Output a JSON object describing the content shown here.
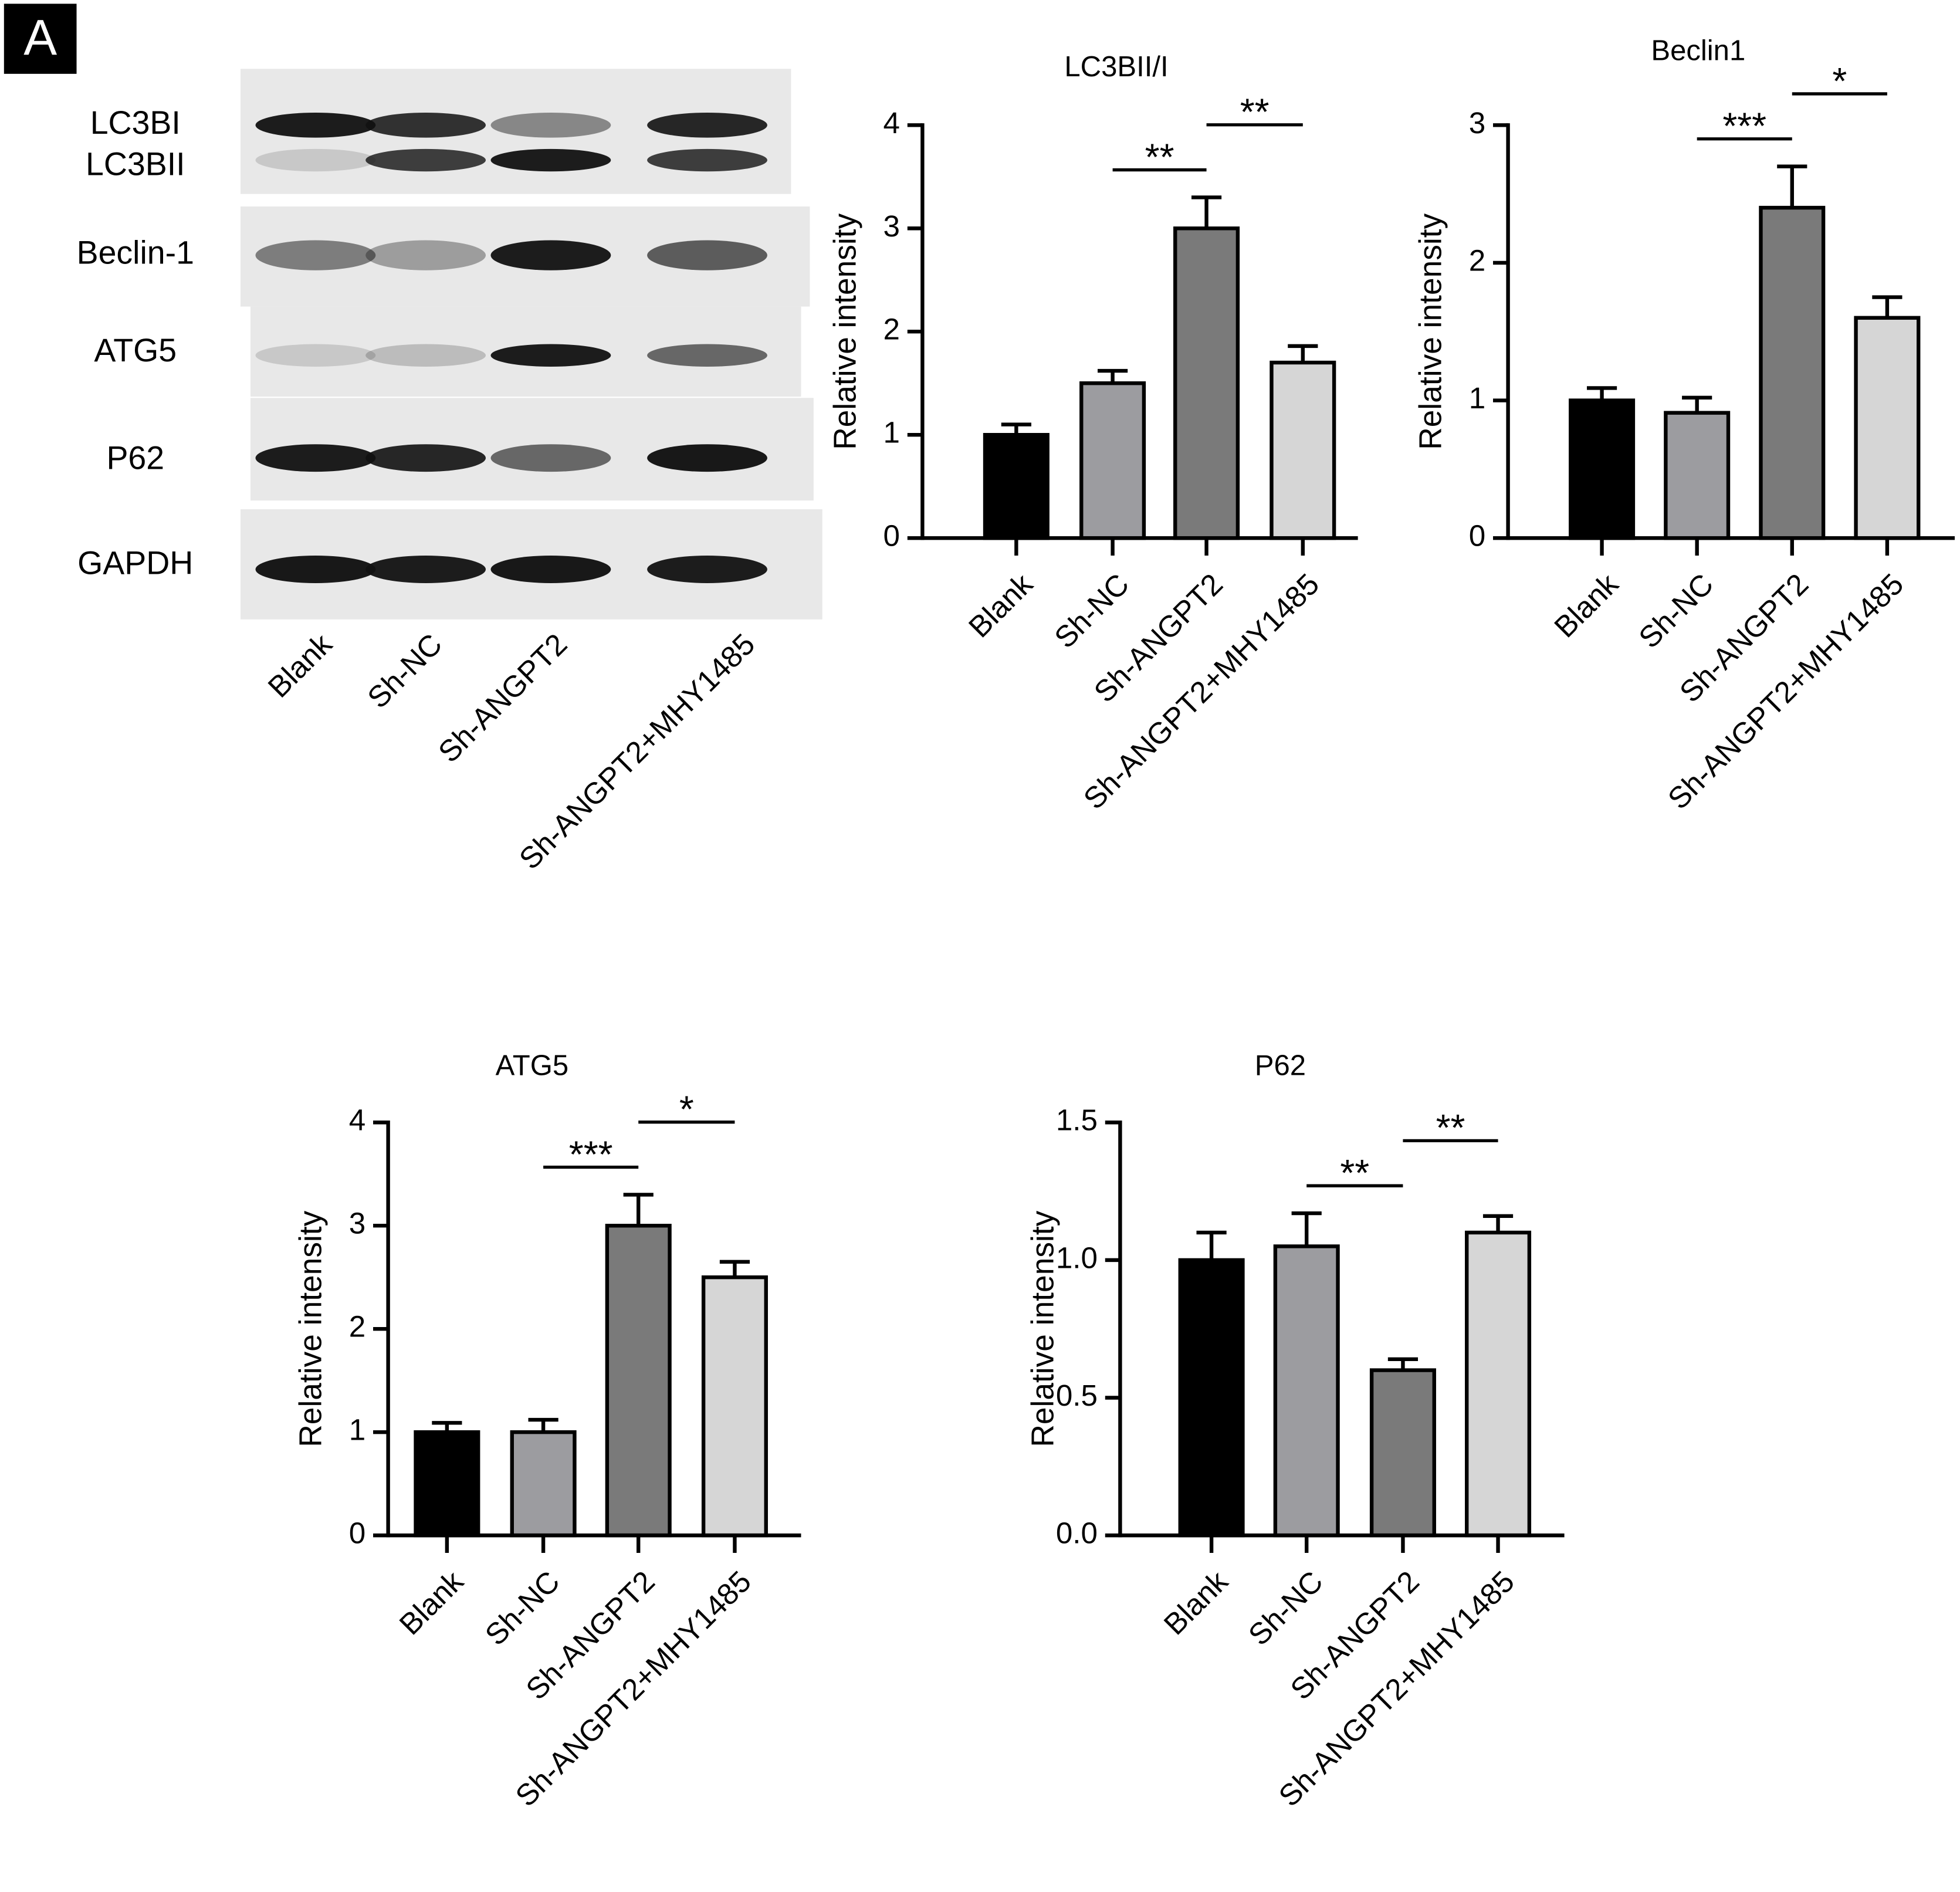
{
  "panel_label": "A",
  "blot": {
    "rows": [
      "LC3BI",
      "LC3BII",
      "Beclin-1",
      "ATG5",
      "P62",
      "GAPDH"
    ],
    "lanes": [
      "Blank",
      "Sh-NC",
      "Sh-ANGPT2",
      "Sh-ANGPT2+MHY1485"
    ]
  },
  "chart_data": [
    {
      "type": "bar",
      "title": "LC3BII/I",
      "ylabel": "Relative intensity",
      "categories": [
        "Blank",
        "Sh-NC",
        "Sh-ANGPT2",
        "Sh-ANGPT2+MHY1485"
      ],
      "values": [
        1,
        1.5,
        3,
        1.7
      ],
      "errors": [
        0.1,
        0.12,
        0.3,
        0.16
      ],
      "colors": [
        "#000000",
        "#9c9ca0",
        "#7a7a7a",
        "#d6d6d6"
      ],
      "ylim": [
        0,
        4
      ],
      "yticks": [
        0,
        1,
        2,
        3,
        4
      ],
      "annotations": [
        {
          "text": "**",
          "groups": [
            "Sh-NC",
            "Sh-ANGPT2"
          ]
        },
        {
          "text": "**",
          "groups": [
            "Sh-ANGPT2",
            "Sh-ANGPT2+MHY1485"
          ]
        }
      ]
    },
    {
      "type": "bar",
      "title": "Beclin1",
      "ylabel": "Relative intensity",
      "categories": [
        "Blank",
        "Sh-NC",
        "Sh-ANGPT2",
        "Sh-ANGPT2+MHY1485"
      ],
      "values": [
        1,
        0.91,
        2.4,
        1.6
      ],
      "errors": [
        0.09,
        0.11,
        0.3,
        0.15
      ],
      "colors": [
        "#000000",
        "#9c9ca0",
        "#7a7a7a",
        "#d6d6d6"
      ],
      "ylim": [
        0,
        3
      ],
      "yticks": [
        0,
        1,
        2,
        3
      ],
      "annotations": [
        {
          "text": "***",
          "groups": [
            "Sh-NC",
            "Sh-ANGPT2"
          ]
        },
        {
          "text": "*",
          "groups": [
            "Sh-ANGPT2",
            "Sh-ANGPT2+MHY1485"
          ]
        }
      ]
    },
    {
      "type": "bar",
      "title": "ATG5",
      "ylabel": "Relative intensity",
      "categories": [
        "Blank",
        "Sh-NC",
        "Sh-ANGPT2",
        "Sh-ANGPT2+MHY1485"
      ],
      "values": [
        1,
        1,
        3,
        2.5
      ],
      "errors": [
        0.09,
        0.12,
        0.3,
        0.15
      ],
      "colors": [
        "#000000",
        "#9c9ca0",
        "#7a7a7a",
        "#d6d6d6"
      ],
      "ylim": [
        0,
        4
      ],
      "yticks": [
        0,
        1,
        2,
        3,
        4
      ],
      "annotations": [
        {
          "text": "***",
          "groups": [
            "Sh-NC",
            "Sh-ANGPT2"
          ]
        },
        {
          "text": "*",
          "groups": [
            "Sh-ANGPT2",
            "Sh-ANGPT2+MHY1485"
          ]
        }
      ]
    },
    {
      "type": "bar",
      "title": "P62",
      "ylabel": "Relative intensity",
      "categories": [
        "Blank",
        "Sh-NC",
        "Sh-ANGPT2",
        "Sh-ANGPT2+MHY1485"
      ],
      "values": [
        1,
        1.05,
        0.6,
        1.1
      ],
      "errors": [
        0.1,
        0.12,
        0.04,
        0.06
      ],
      "colors": [
        "#000000",
        "#9c9ca0",
        "#7a7a7a",
        "#d6d6d6"
      ],
      "ylim": [
        0,
        1.5
      ],
      "yticks": [
        {
          "value": 0,
          "label": "0.0"
        },
        0.5,
        {
          "value": 1,
          "label": "1.0"
        },
        1.5
      ],
      "annotations": [
        {
          "text": "**",
          "groups": [
            "Sh-NC",
            "Sh-ANGPT2"
          ]
        },
        {
          "text": "**",
          "groups": [
            "Sh-ANGPT2",
            "Sh-ANGPT2+MHY1485"
          ]
        }
      ]
    }
  ]
}
